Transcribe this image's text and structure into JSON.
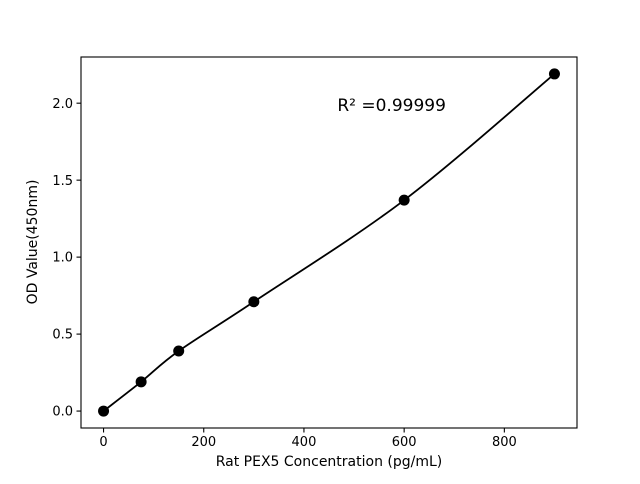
{
  "chart_data": {
    "type": "scatter",
    "title": "",
    "xlabel": "Rat PEX5 Concentration (pg/mL)",
    "ylabel": "OD Value(450nm)",
    "x": [
      0,
      75,
      150,
      300,
      600,
      900
    ],
    "y": [
      0.0,
      0.19,
      0.39,
      0.71,
      1.37,
      2.19
    ],
    "fit_line": true,
    "annotation": {
      "text": "R² =0.99999",
      "x": 575,
      "y": 1.95
    },
    "xticks": {
      "values": [
        0,
        200,
        400,
        600,
        800
      ],
      "labels": [
        "0",
        "200",
        "400",
        "600",
        "800"
      ]
    },
    "yticks": {
      "values": [
        0.0,
        0.5,
        1.0,
        1.5,
        2.0
      ],
      "labels": [
        "0.0",
        "0.5",
        "1.0",
        "1.5",
        "2.0"
      ]
    },
    "xlim": [
      -45,
      945
    ],
    "ylim": [
      -0.11,
      2.3
    ],
    "grid": false,
    "legend": "none",
    "marker_color": "#000000",
    "line_color": "#000000",
    "axis_color": "#000000",
    "background": "#ffffff"
  }
}
